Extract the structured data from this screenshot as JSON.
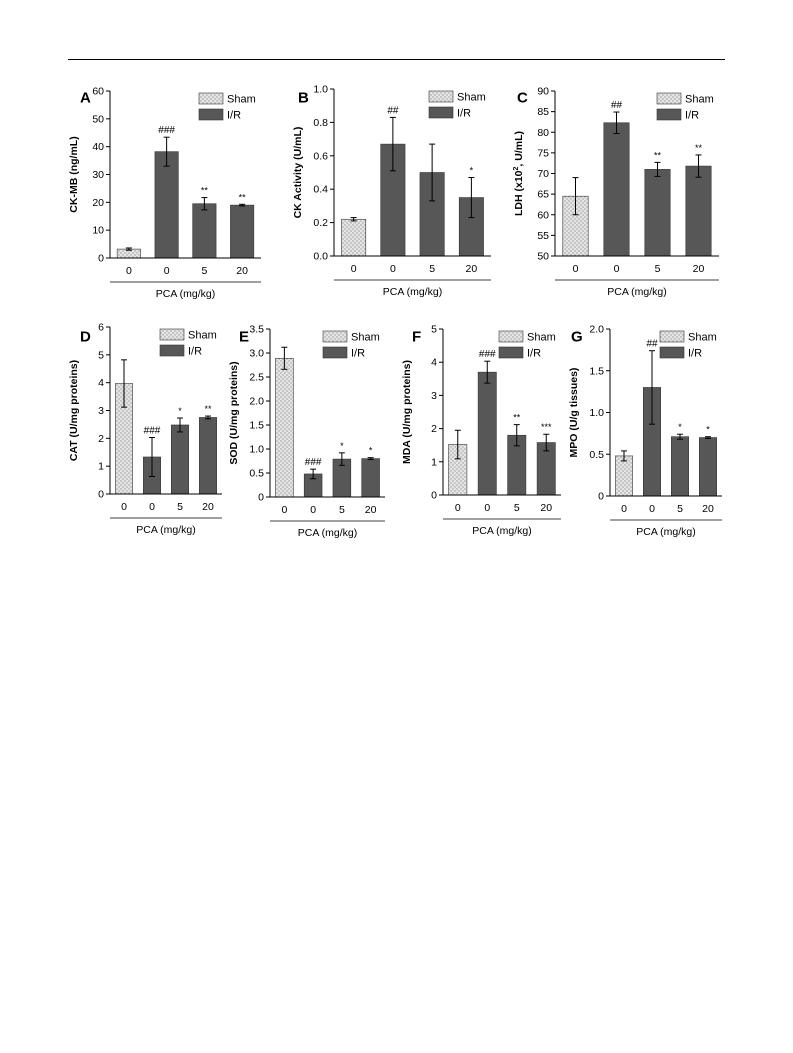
{
  "colors": {
    "sham_fill": "#e4e4e4",
    "sham_dots": "#9a9a9a",
    "ir_fill": "#575757",
    "axis": "#000000"
  },
  "common": {
    "xlabel": "PCA (mg/kg)",
    "categories": [
      "0",
      "0",
      "5",
      "20"
    ],
    "legend": [
      "Sham",
      "I/R"
    ]
  },
  "chart_data": [
    {
      "panel": "A",
      "type": "bar",
      "ylabel": "CK-MB (ng/mL)",
      "xlabel": "PCA (mg/kg)",
      "ylim": [
        0,
        60
      ],
      "yticks": [
        0,
        10,
        20,
        30,
        40,
        50,
        60
      ],
      "categories": [
        "0",
        "0",
        "5",
        "20"
      ],
      "groups": [
        "Sham",
        "I/R",
        "I/R",
        "I/R"
      ],
      "values": [
        3.2,
        38.2,
        19.5,
        19.0
      ],
      "errors": [
        0.4,
        5.2,
        2.2,
        0.3
      ],
      "annotations": [
        "",
        "###",
        "**",
        "**"
      ],
      "legend": [
        "Sham",
        "I/R"
      ],
      "legend_position": "top-right"
    },
    {
      "panel": "B",
      "type": "bar",
      "ylabel": "CK Activity (U/mL)",
      "xlabel": "PCA (mg/kg)",
      "ylim": [
        0,
        1.0
      ],
      "yticks": [
        "0.0",
        "0.2",
        "0.4",
        "0.6",
        "0.8",
        "1.0"
      ],
      "categories": [
        "0",
        "0",
        "5",
        "20"
      ],
      "groups": [
        "Sham",
        "I/R",
        "I/R",
        "I/R"
      ],
      "values": [
        0.22,
        0.67,
        0.5,
        0.35
      ],
      "errors": [
        0.01,
        0.16,
        0.17,
        0.12
      ],
      "annotations": [
        "",
        "##",
        "",
        "*"
      ],
      "legend": [
        "Sham",
        "I/R"
      ],
      "legend_position": "top-right"
    },
    {
      "panel": "C",
      "type": "bar",
      "ylabel": "LDH (x10², U/mL)",
      "xlabel": "PCA (mg/kg)",
      "ylim": [
        50,
        90
      ],
      "yticks": [
        50,
        55,
        60,
        65,
        70,
        75,
        80,
        85,
        90
      ],
      "categories": [
        "0",
        "0",
        "5",
        "20"
      ],
      "groups": [
        "Sham",
        "I/R",
        "I/R",
        "I/R"
      ],
      "values": [
        64.5,
        82.3,
        71.0,
        71.8
      ],
      "errors": [
        4.5,
        2.6,
        1.7,
        2.7
      ],
      "annotations": [
        "",
        "##",
        "**",
        "**"
      ],
      "legend": [
        "Sham",
        "I/R"
      ],
      "legend_position": "top-right"
    },
    {
      "panel": "D",
      "type": "bar",
      "ylabel": "CAT (U/mg proteins)",
      "xlabel": "PCA (mg/kg)",
      "ylim": [
        0,
        6
      ],
      "yticks": [
        0,
        1,
        2,
        3,
        4,
        5,
        6
      ],
      "categories": [
        "0",
        "0",
        "5",
        "20"
      ],
      "groups": [
        "Sham",
        "I/R",
        "I/R",
        "I/R"
      ],
      "values": [
        3.97,
        1.33,
        2.48,
        2.75
      ],
      "errors": [
        0.85,
        0.7,
        0.25,
        0.05
      ],
      "annotations": [
        "",
        "###",
        "*",
        "**"
      ],
      "legend": [
        "Sham",
        "I/R"
      ],
      "legend_position": "top-right"
    },
    {
      "panel": "E",
      "type": "bar",
      "ylabel": "SOD (U/mg proteins)",
      "xlabel": "PCA (mg/kg)",
      "ylim": [
        0,
        3.5
      ],
      "yticks": [
        "0",
        "0.5",
        "1.0",
        "1.5",
        "2.0",
        "2.5",
        "3.0",
        "3.5"
      ],
      "categories": [
        "0",
        "0",
        "5",
        "20"
      ],
      "groups": [
        "Sham",
        "I/R",
        "I/R",
        "I/R"
      ],
      "values": [
        2.89,
        0.48,
        0.79,
        0.8
      ],
      "errors": [
        0.23,
        0.1,
        0.13,
        0.02
      ],
      "annotations": [
        "",
        "###",
        "*",
        "*"
      ],
      "legend": [
        "Sham",
        "I/R"
      ],
      "legend_position": "top-right"
    },
    {
      "panel": "F",
      "type": "bar",
      "ylabel": "MDA (U/mg proteins)",
      "xlabel": "PCA (mg/kg)",
      "ylim": [
        0,
        5
      ],
      "yticks": [
        0,
        1,
        2,
        3,
        4,
        5
      ],
      "categories": [
        "0",
        "0",
        "5",
        "20"
      ],
      "groups": [
        "Sham",
        "I/R",
        "I/R",
        "I/R"
      ],
      "values": [
        1.52,
        3.7,
        1.8,
        1.58
      ],
      "errors": [
        0.43,
        0.33,
        0.32,
        0.25
      ],
      "annotations": [
        "",
        "###",
        "**",
        "***"
      ],
      "legend": [
        "Sham",
        "I/R"
      ],
      "legend_position": "top-right"
    },
    {
      "panel": "G",
      "type": "bar",
      "ylabel": "MPO (U/g tissues)",
      "xlabel": "PCA (mg/kg)",
      "ylim": [
        0,
        2.0
      ],
      "yticks": [
        "0",
        "0.5",
        "1.0",
        "1.5",
        "2.0"
      ],
      "categories": [
        "0",
        "0",
        "5",
        "20"
      ],
      "groups": [
        "Sham",
        "I/R",
        "I/R",
        "I/R"
      ],
      "values": [
        0.48,
        1.3,
        0.71,
        0.7
      ],
      "errors": [
        0.06,
        0.44,
        0.03,
        0.01
      ],
      "annotations": [
        "",
        "##",
        "*",
        "*"
      ],
      "legend": [
        "Sham",
        "I/R"
      ],
      "legend_position": "top-right"
    }
  ]
}
